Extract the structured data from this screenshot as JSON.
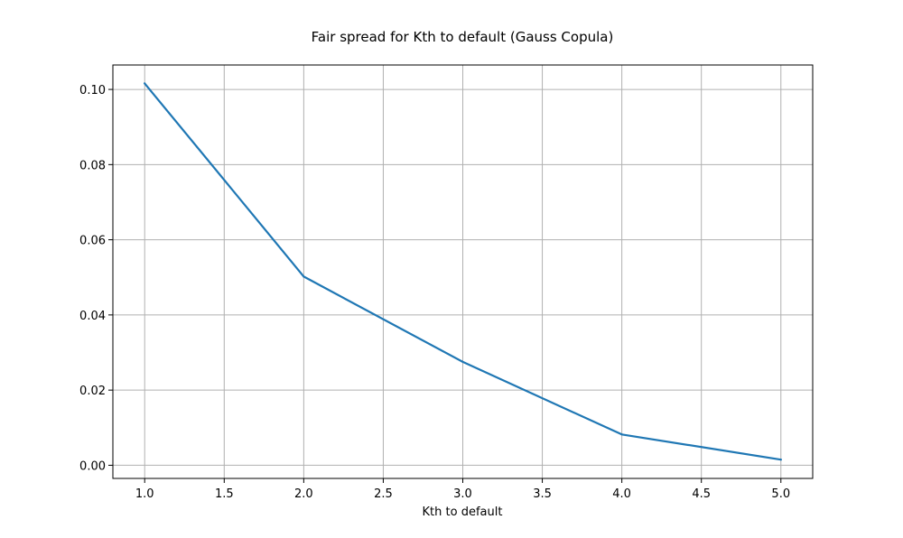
{
  "chart_data": {
    "type": "line",
    "title": "Fair spread for Kth to default (Gauss Copula)",
    "xlabel": "Kth to default",
    "ylabel": "",
    "xlim": [
      0.8,
      5.2
    ],
    "ylim": [
      -0.0035,
      0.1065
    ],
    "xticks": [
      1.0,
      1.5,
      2.0,
      2.5,
      3.0,
      3.5,
      4.0,
      4.5,
      5.0
    ],
    "xtick_labels": [
      "1.0",
      "1.5",
      "2.0",
      "2.5",
      "3.0",
      "3.5",
      "4.0",
      "4.5",
      "5.0"
    ],
    "yticks": [
      0.0,
      0.02,
      0.04,
      0.06,
      0.08,
      0.1
    ],
    "ytick_labels": [
      "0.00",
      "0.02",
      "0.04",
      "0.06",
      "0.08",
      "0.10"
    ],
    "grid": true,
    "series": [
      {
        "color": "#1f77b4",
        "x": [
          1,
          2,
          3,
          4,
          5
        ],
        "y": [
          0.1016,
          0.0502,
          0.0275,
          0.0082,
          0.0015
        ]
      }
    ]
  }
}
